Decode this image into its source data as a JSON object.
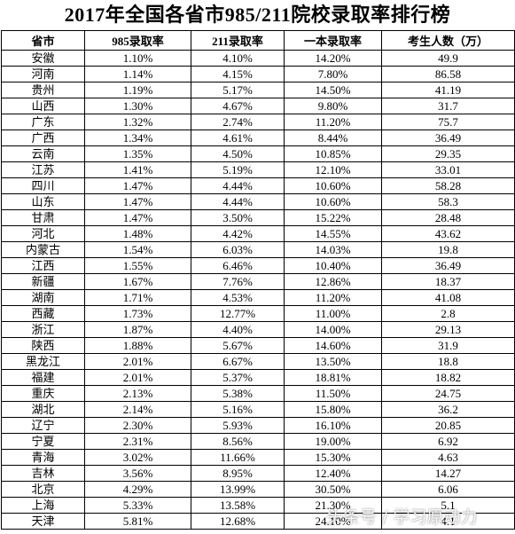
{
  "title": "2017年全国各省市985/211院校录取率排行榜",
  "table": {
    "header": [
      "省市",
      "985录取率",
      "211录取率",
      "一本录取率",
      "考生人数（万）"
    ],
    "rows": [
      [
        "安徽",
        "1.10%",
        "4.10%",
        "14.20%",
        "49.9"
      ],
      [
        "河南",
        "1.14%",
        "4.15%",
        "7.80%",
        "86.58"
      ],
      [
        "贵州",
        "1.19%",
        "5.17%",
        "14.50%",
        "41.19"
      ],
      [
        "山西",
        "1.30%",
        "4.67%",
        "9.80%",
        "31.7"
      ],
      [
        "广东",
        "1.32%",
        "2.74%",
        "11.20%",
        "75.7"
      ],
      [
        "广西",
        "1.34%",
        "4.61%",
        "8.44%",
        "36.49"
      ],
      [
        "云南",
        "1.35%",
        "4.50%",
        "10.85%",
        "29.35"
      ],
      [
        "江苏",
        "1.41%",
        "5.19%",
        "12.10%",
        "33.01"
      ],
      [
        "四川",
        "1.47%",
        "4.44%",
        "10.60%",
        "58.28"
      ],
      [
        "山东",
        "1.47%",
        "4.44%",
        "10.60%",
        "58.3"
      ],
      [
        "甘肃",
        "1.47%",
        "3.50%",
        "15.22%",
        "28.48"
      ],
      [
        "河北",
        "1.48%",
        "4.42%",
        "14.55%",
        "43.62"
      ],
      [
        "内蒙古",
        "1.54%",
        "6.03%",
        "14.03%",
        "19.8"
      ],
      [
        "江西",
        "1.55%",
        "6.46%",
        "10.40%",
        "36.49"
      ],
      [
        "新疆",
        "1.67%",
        "7.76%",
        "12.86%",
        "18.37"
      ],
      [
        "湖南",
        "1.71%",
        "4.53%",
        "11.20%",
        "41.08"
      ],
      [
        "西藏",
        "1.73%",
        "12.77%",
        "11.00%",
        "2.8"
      ],
      [
        "浙江",
        "1.87%",
        "4.40%",
        "14.00%",
        "29.13"
      ],
      [
        "陕西",
        "1.88%",
        "5.67%",
        "14.60%",
        "31.9"
      ],
      [
        "黑龙江",
        "2.01%",
        "6.67%",
        "13.50%",
        "18.8"
      ],
      [
        "福建",
        "2.01%",
        "5.37%",
        "18.81%",
        "18.82"
      ],
      [
        "重庆",
        "2.13%",
        "5.38%",
        "11.50%",
        "24.75"
      ],
      [
        "湖北",
        "2.14%",
        "5.16%",
        "15.80%",
        "36.2"
      ],
      [
        "辽宁",
        "2.30%",
        "5.93%",
        "16.10%",
        "20.85"
      ],
      [
        "宁夏",
        "2.31%",
        "8.56%",
        "19.00%",
        "6.92"
      ],
      [
        "青海",
        "3.02%",
        "11.66%",
        "15.30%",
        "4.63"
      ],
      [
        "吉林",
        "3.56%",
        "8.95%",
        "12.40%",
        "14.27"
      ],
      [
        "北京",
        "4.29%",
        "13.99%",
        "30.50%",
        "6.06"
      ],
      [
        "上海",
        "5.33%",
        "13.58%",
        "21.30%",
        "5.1"
      ],
      [
        "天津",
        "5.81%",
        "12.68%",
        "24.10%",
        "4.1"
      ]
    ]
  },
  "watermark": "头条号 / 学习原动力"
}
